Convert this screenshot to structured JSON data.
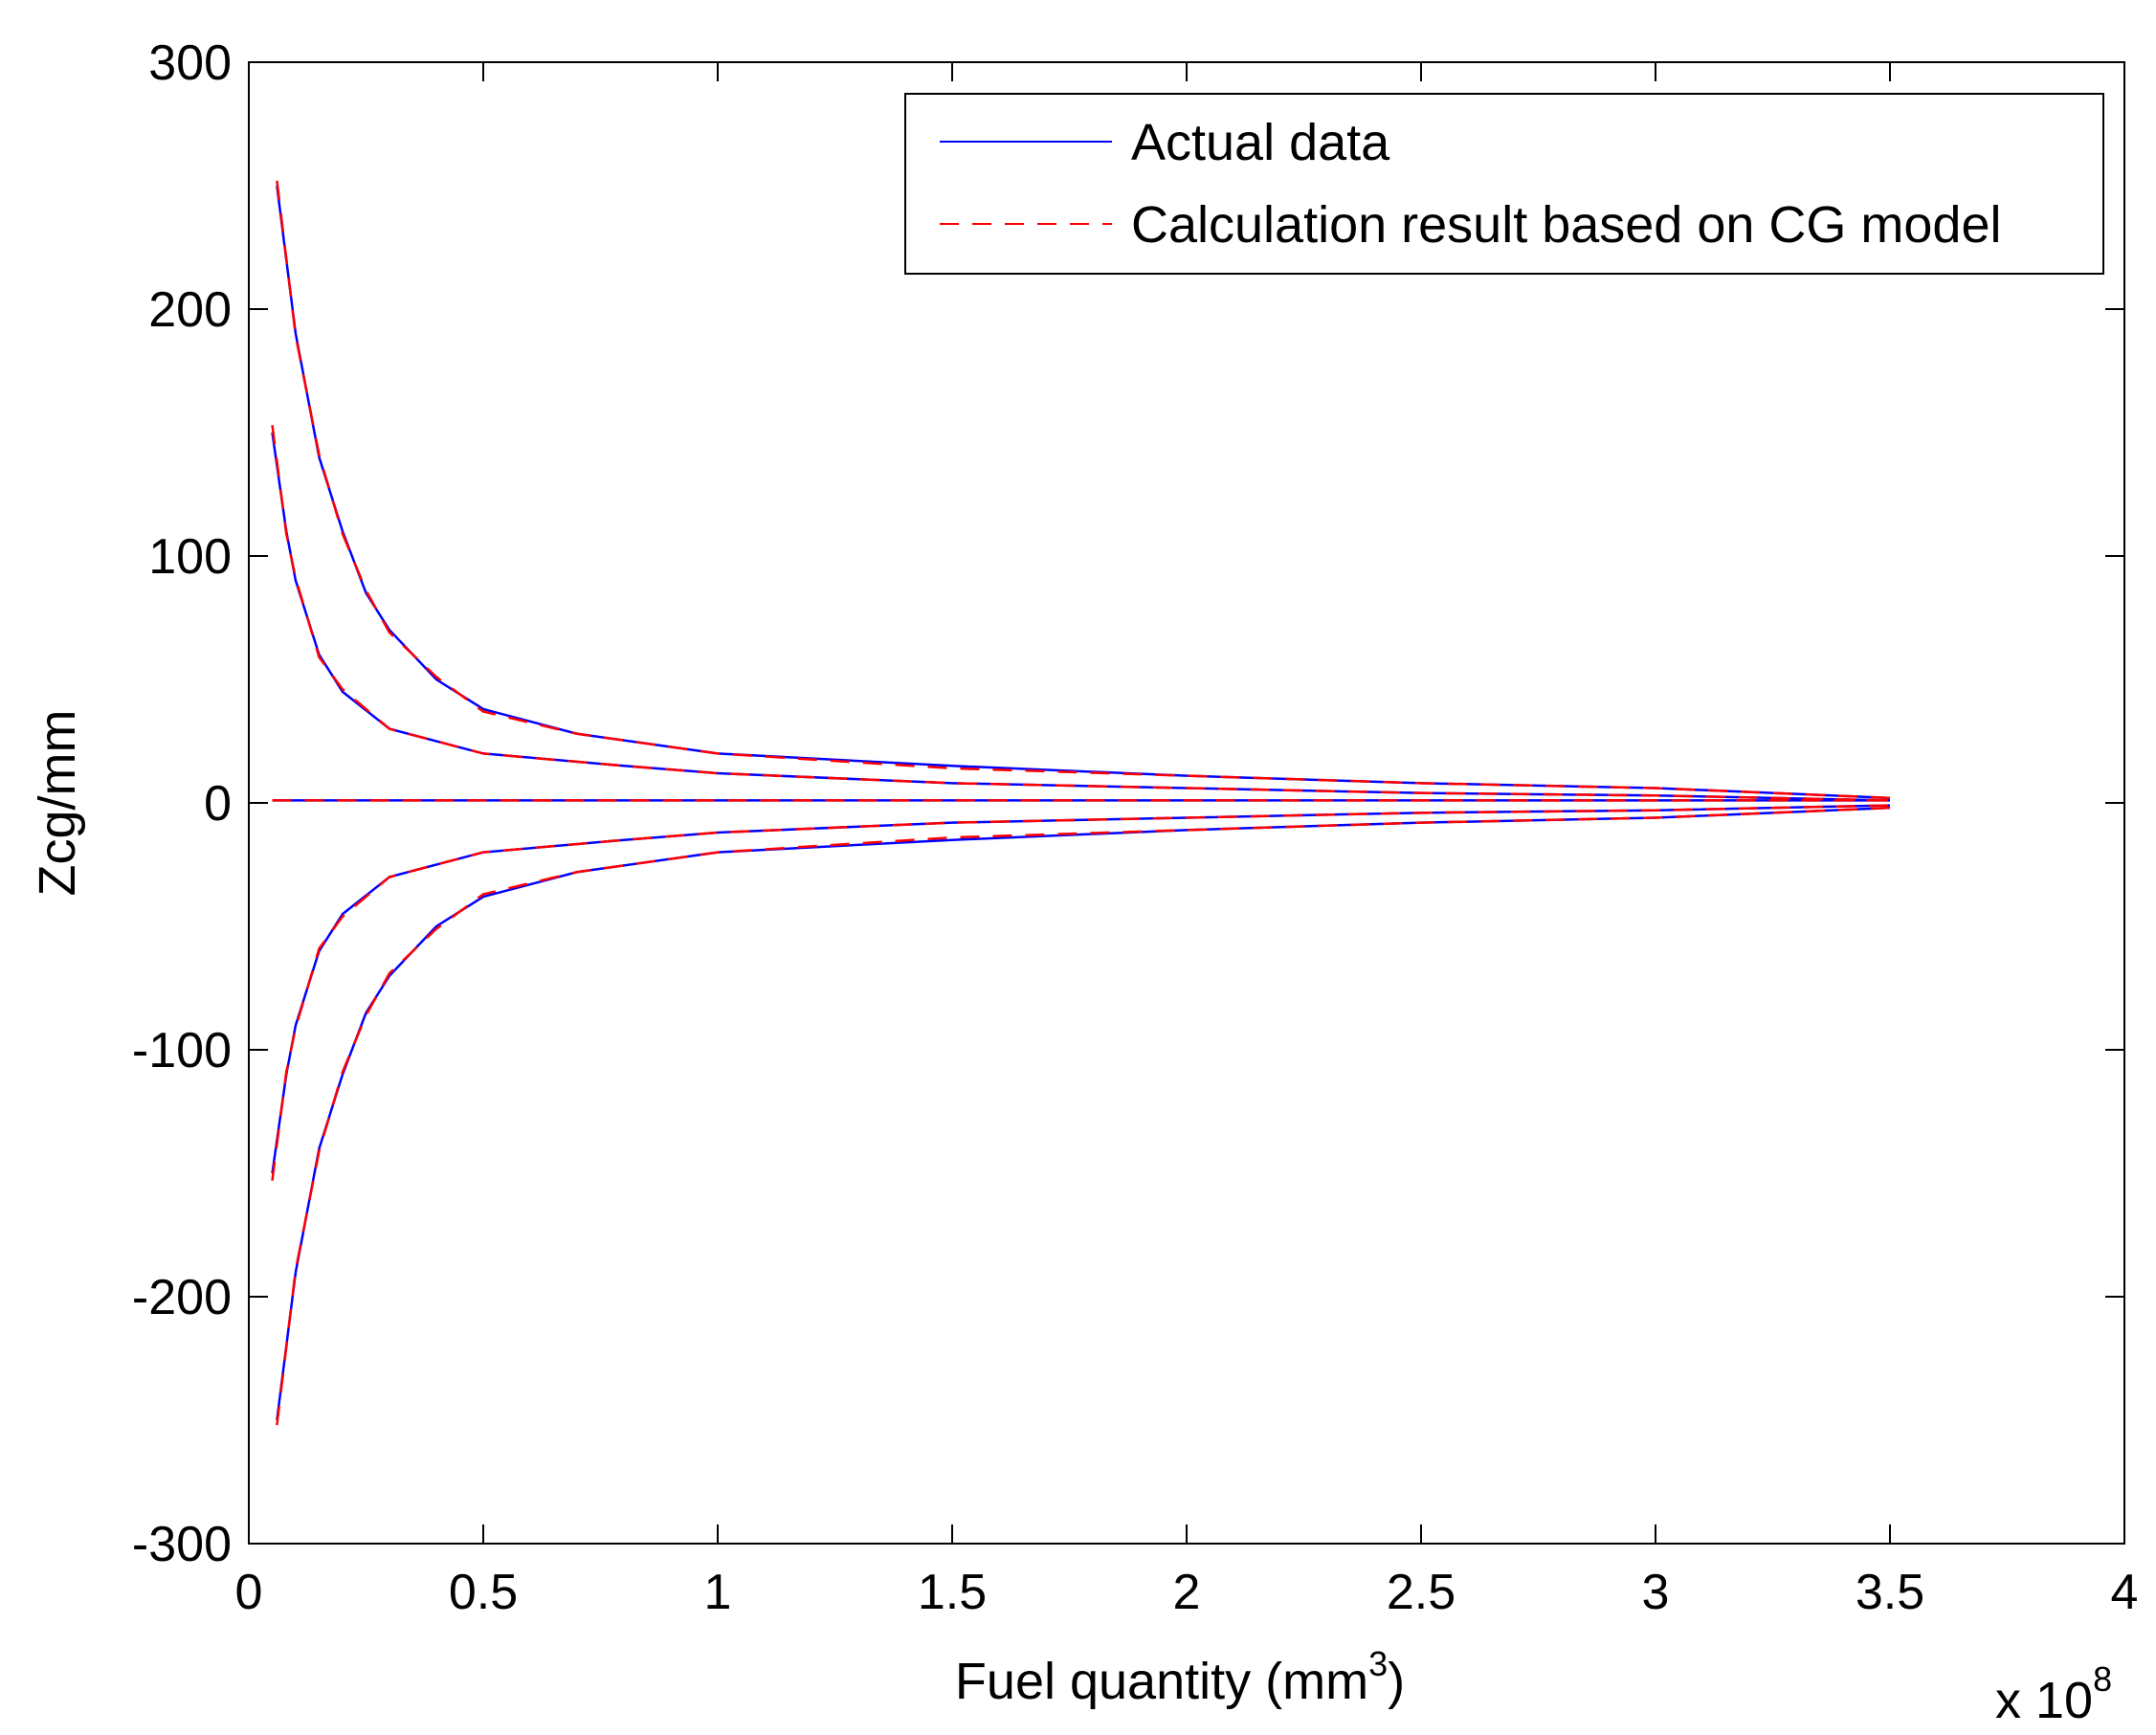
{
  "chart_data": {
    "type": "line",
    "title": "",
    "xlabel": "Fuel quantity (mm",
    "xlabel_sup": "3",
    "xlabel_end": ")",
    "x_multiplier": "x 10",
    "x_multiplier_exp": "8",
    "ylabel": "Zcg/mm",
    "xlim": [
      0,
      4
    ],
    "ylim": [
      -300,
      300
    ],
    "xticks": [
      "0",
      "0.5",
      "1",
      "1.5",
      "2",
      "2.5",
      "3",
      "3.5",
      "4"
    ],
    "yticks": [
      "300",
      "200",
      "100",
      "0",
      "-100",
      "-200",
      "-300"
    ],
    "grid": false,
    "legend_placement": "top-right",
    "series": [
      {
        "name": "Actual data",
        "color": "#0000ff",
        "style": "solid",
        "branches": [
          {
            "x": [
              0.06,
              0.1,
              0.15,
              0.2,
              0.25,
              0.3,
              0.4,
              0.5,
              0.7,
              1.0,
              1.5,
              2.0,
              2.5,
              3.0,
              3.5
            ],
            "y": [
              250,
              190,
              140,
              110,
              85,
              70,
              50,
              38,
              28,
              20,
              15,
              11,
              8,
              6,
              2
            ]
          },
          {
            "x": [
              0.05,
              0.08,
              0.1,
              0.15,
              0.2,
              0.3,
              0.5,
              0.8,
              1.0,
              1.5,
              2.0,
              2.5,
              3.0,
              3.5
            ],
            "y": [
              150,
              110,
              90,
              60,
              45,
              30,
              20,
              15,
              12,
              8,
              6,
              4,
              3,
              1
            ]
          },
          {
            "x": [
              0.05,
              3.5
            ],
            "y": [
              1,
              1
            ]
          },
          {
            "x": [
              0.05,
              0.08,
              0.1,
              0.15,
              0.2,
              0.3,
              0.5,
              0.8,
              1.0,
              1.5,
              2.0,
              2.5,
              3.0,
              3.5
            ],
            "y": [
              -150,
              -110,
              -90,
              -60,
              -45,
              -30,
              -20,
              -15,
              -12,
              -8,
              -6,
              -4,
              -3,
              -1
            ]
          },
          {
            "x": [
              0.06,
              0.1,
              0.15,
              0.2,
              0.25,
              0.3,
              0.4,
              0.5,
              0.7,
              1.0,
              1.5,
              2.0,
              2.5,
              3.0,
              3.5
            ],
            "y": [
              -250,
              -190,
              -140,
              -110,
              -85,
              -70,
              -50,
              -38,
              -28,
              -20,
              -15,
              -11,
              -8,
              -6,
              -2
            ]
          }
        ]
      },
      {
        "name": "Calculation result based on CG model",
        "color": "#ff0000",
        "style": "dashed",
        "branches": [
          {
            "x": [
              0.06,
              0.1,
              0.15,
              0.2,
              0.25,
              0.3,
              0.4,
              0.5,
              0.7,
              1.0,
              1.5,
              2.0,
              2.5,
              3.0,
              3.5
            ],
            "y": [
              252,
              189,
              141,
              109,
              86,
              69,
              51,
              37,
              28,
              20,
              14,
              11,
              8,
              6,
              2
            ]
          },
          {
            "x": [
              0.05,
              0.08,
              0.1,
              0.15,
              0.2,
              0.3,
              0.5,
              0.8,
              1.0,
              1.5,
              2.0,
              2.5,
              3.0,
              3.5
            ],
            "y": [
              153,
              109,
              91,
              59,
              46,
              30,
              20,
              15,
              12,
              8,
              6,
              4,
              3,
              1
            ]
          },
          {
            "x": [
              0.05,
              3.5
            ],
            "y": [
              1,
              1
            ]
          },
          {
            "x": [
              0.05,
              0.08,
              0.1,
              0.15,
              0.2,
              0.3,
              0.5,
              0.8,
              1.0,
              1.5,
              2.0,
              2.5,
              3.0,
              3.5
            ],
            "y": [
              -153,
              -109,
              -91,
              -59,
              -46,
              -30,
              -20,
              -15,
              -12,
              -8,
              -6,
              -4,
              -3,
              -1
            ]
          },
          {
            "x": [
              0.06,
              0.1,
              0.15,
              0.2,
              0.25,
              0.3,
              0.4,
              0.5,
              0.7,
              1.0,
              1.5,
              2.0,
              2.5,
              3.0,
              3.5
            ],
            "y": [
              -252,
              -189,
              -141,
              -109,
              -86,
              -69,
              -51,
              -37,
              -28,
              -20,
              -14,
              -11,
              -8,
              -6,
              -2
            ]
          }
        ]
      }
    ]
  }
}
